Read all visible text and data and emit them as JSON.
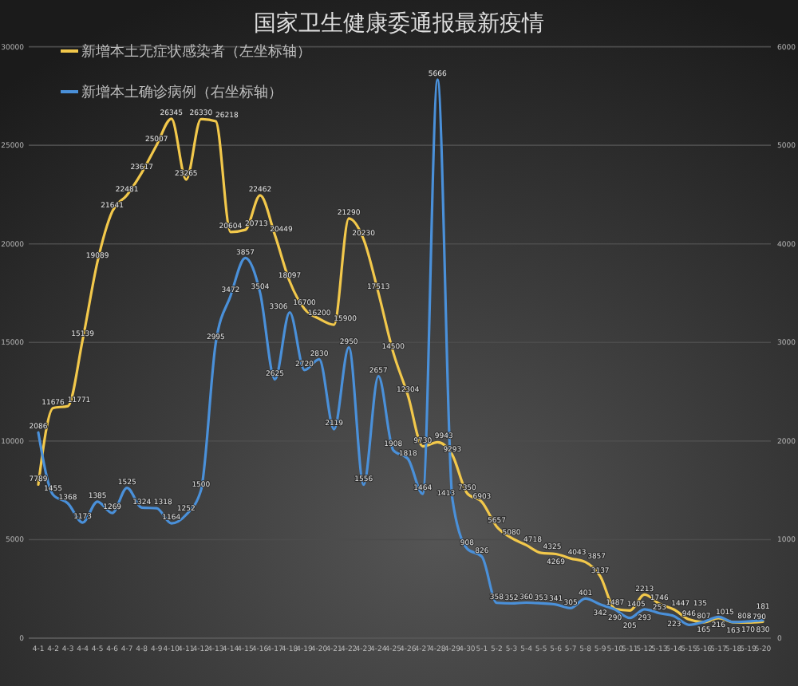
{
  "chart_data": {
    "type": "line",
    "title": "国家卫生健康委通报最新疫情",
    "categories": [
      "4-1",
      "4-2",
      "4-3",
      "4-4",
      "4-5",
      "4-6",
      "4-7",
      "4-8",
      "4-9",
      "4-10",
      "4-11",
      "4-12",
      "4-13",
      "4-14",
      "4-15",
      "4-16",
      "4-17",
      "4-18",
      "4-19",
      "4-20",
      "4-21",
      "4-22",
      "4-23",
      "4-24",
      "4-25",
      "4-26",
      "4-27",
      "4-28",
      "4-29",
      "4-30",
      "5-1",
      "5-2",
      "5-3",
      "5-4",
      "5-5",
      "5-6",
      "5-7",
      "5-8",
      "5-9",
      "5-10",
      "5-11",
      "5-12",
      "5-13",
      "5-14",
      "5-15",
      "5-16",
      "5-17",
      "5-18",
      "5-19",
      "5-20"
    ],
    "series": [
      {
        "name": "新增本土无症状感染者（左坐标轴）",
        "color": "#f2c84b",
        "axis": "y",
        "values": [
          7789,
          11676,
          11771,
          15139,
          19089,
          21641,
          22481,
          23617,
          25007,
          26345,
          23265,
          26330,
          26218,
          20604,
          20713,
          22462,
          20449,
          18097,
          16700,
          16200,
          15900,
          21290,
          20230,
          17513,
          14500,
          12304,
          9730,
          9943,
          9293,
          7350,
          6903,
          5657,
          5080,
          4718,
          4325,
          4269,
          4043,
          3857,
          3137,
          1487,
          1405,
          2213,
          1746,
          1447,
          946,
          807,
          1015,
          808,
          790,
          830
        ]
      },
      {
        "name": "新增本土确诊病例（右坐标轴）",
        "color": "#4a90d9",
        "axis": "y2",
        "values": [
          2086,
          1455,
          1368,
          1173,
          1385,
          1269,
          1525,
          1324,
          1318,
          1164,
          1252,
          1500,
          2995,
          3472,
          3857,
          3504,
          2625,
          3306,
          2720,
          2830,
          2119,
          2950,
          1556,
          2657,
          1908,
          1818,
          1464,
          5666,
          1413,
          908,
          826,
          358,
          352,
          360,
          353,
          341,
          305,
          401,
          342,
          290,
          205,
          293,
          253,
          223,
          135,
          165,
          216,
          163,
          170,
          181
        ]
      }
    ],
    "ylim": [
      0,
      30000
    ],
    "yticks": [
      0,
      5000,
      10000,
      15000,
      20000,
      25000,
      30000
    ],
    "y2lim": [
      0,
      6000
    ],
    "y2ticks": [
      0,
      1000,
      2000,
      3000,
      4000,
      5000,
      6000
    ],
    "grid": "y",
    "legend": "top left",
    "data_labels": true
  }
}
